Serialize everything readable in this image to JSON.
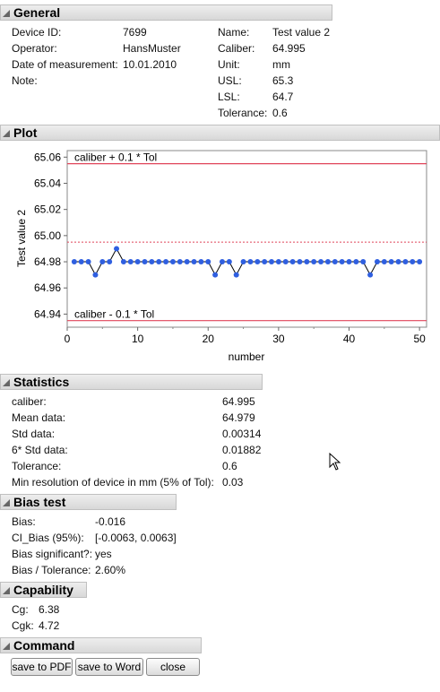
{
  "general": {
    "title": "General",
    "left": [
      {
        "label": "Device ID:",
        "value": "7699"
      },
      {
        "label": "Operator:",
        "value": "HansMuster"
      },
      {
        "label": "Date of measurement:",
        "value": "10.01.2010"
      },
      {
        "label": "Note:",
        "value": ""
      }
    ],
    "right": [
      {
        "label": "Name:",
        "value": "Test value 2"
      },
      {
        "label": "Caliber:",
        "value": "64.995"
      },
      {
        "label": "Unit:",
        "value": "mm"
      },
      {
        "label": "USL:",
        "value": "65.3"
      },
      {
        "label": "LSL:",
        "value": "64.7"
      },
      {
        "label": "Tolerance:",
        "value": "0.6"
      }
    ]
  },
  "plot": {
    "title": "Plot",
    "ylabel": "Test value 2",
    "xlabel": "number",
    "upper_limit_label": "caliber + 0.1 * Tol",
    "lower_limit_label": "caliber - 0.1 * Tol",
    "upper_limit": 65.055,
    "lower_limit": 64.935,
    "caliber": 64.995,
    "xlim": [
      0,
      51
    ],
    "ylim": [
      64.93,
      65.065
    ],
    "xticks": [
      0,
      10,
      20,
      30,
      40,
      50
    ],
    "yticks": [
      64.94,
      64.96,
      64.98,
      65.0,
      65.02,
      65.04,
      65.06
    ],
    "ytick_labels": [
      "64.94",
      "64.96",
      "64.98",
      "65.00",
      "65.02",
      "65.04",
      "65.06"
    ],
    "limit_color": "#e0455a",
    "point_color": "#2f5fe0",
    "line_color": "#000000"
  },
  "chart_data": {
    "type": "line",
    "title": "",
    "xlabel": "number",
    "ylabel": "Test value 2",
    "ylim": [
      64.93,
      65.065
    ],
    "xlim": [
      0,
      51
    ],
    "reference_lines": [
      {
        "label": "caliber + 0.1 * Tol",
        "y": 65.055
      },
      {
        "label": "caliber - 0.1 * Tol",
        "y": 64.935
      },
      {
        "label": "",
        "y": 64.995
      }
    ],
    "x": [
      1,
      2,
      3,
      4,
      5,
      6,
      7,
      8,
      9,
      10,
      11,
      12,
      13,
      14,
      15,
      16,
      17,
      18,
      19,
      20,
      21,
      22,
      23,
      24,
      25,
      26,
      27,
      28,
      29,
      30,
      31,
      32,
      33,
      34,
      35,
      36,
      37,
      38,
      39,
      40,
      41,
      42,
      43,
      44,
      45,
      46,
      47,
      48,
      49,
      50
    ],
    "values": [
      64.98,
      64.98,
      64.98,
      64.97,
      64.98,
      64.98,
      64.99,
      64.98,
      64.98,
      64.98,
      64.98,
      64.98,
      64.98,
      64.98,
      64.98,
      64.98,
      64.98,
      64.98,
      64.98,
      64.98,
      64.97,
      64.98,
      64.98,
      64.97,
      64.98,
      64.98,
      64.98,
      64.98,
      64.98,
      64.98,
      64.98,
      64.98,
      64.98,
      64.98,
      64.98,
      64.98,
      64.98,
      64.98,
      64.98,
      64.98,
      64.98,
      64.98,
      64.97,
      64.98,
      64.98,
      64.98,
      64.98,
      64.98,
      64.98,
      64.98
    ]
  },
  "statistics": {
    "title": "Statistics",
    "rows": [
      {
        "label": "caliber:",
        "value": "64.995"
      },
      {
        "label": "Mean data:",
        "value": "64.979"
      },
      {
        "label": "Std data:",
        "value": "0.00314"
      },
      {
        "label": "6* Std data:",
        "value": "0.01882"
      },
      {
        "label": "Tolerance:",
        "value": "0.6"
      },
      {
        "label": "Min resolution of device in mm (5% of Tol):",
        "value": "0.03"
      }
    ]
  },
  "bias": {
    "title": "Bias test",
    "rows": [
      {
        "label": "Bias:",
        "value": "-0.016"
      },
      {
        "label": "CI_Bias (95%):",
        "value": "[-0.0063, 0.0063]"
      },
      {
        "label": "Bias significant?:",
        "value": "yes"
      },
      {
        "label": "Bias / Tolerance:",
        "value": "2.60%"
      }
    ]
  },
  "capability": {
    "title": "Capability",
    "rows": [
      {
        "label": "Cg:",
        "value": "6.38"
      },
      {
        "label": "Cgk:",
        "value": "4.72"
      }
    ]
  },
  "command": {
    "title": "Command",
    "save_pdf_label": "save to PDF",
    "save_word_label": "save to Word",
    "close_label": "close"
  }
}
